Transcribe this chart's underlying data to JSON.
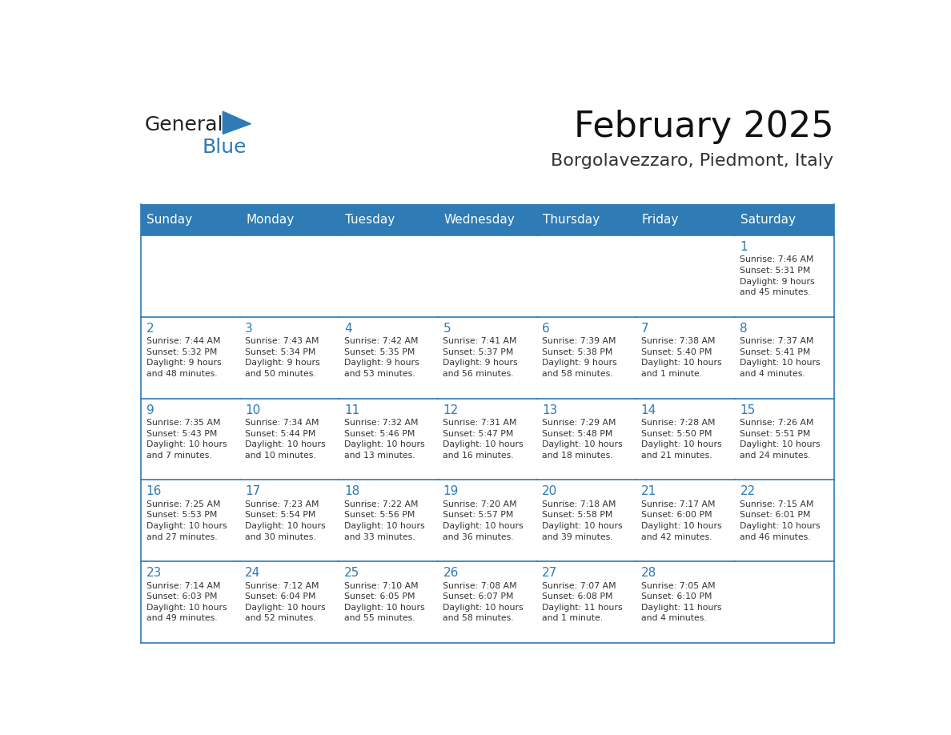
{
  "title": "February 2025",
  "subtitle": "Borgolavezzaro, Piedmont, Italy",
  "header_bg": "#2E7BB5",
  "header_text_color": "#FFFFFF",
  "cell_bg": "#FFFFFF",
  "text_color": "#333333",
  "day_number_color": "#2E7BB5",
  "border_color": "#2E7BB5",
  "days_of_week": [
    "Sunday",
    "Monday",
    "Tuesday",
    "Wednesday",
    "Thursday",
    "Friday",
    "Saturday"
  ],
  "logo_text1": "General",
  "logo_text2": "Blue",
  "logo_color1": "#222222",
  "logo_color2": "#2E7BB5",
  "calendar": [
    [
      {
        "day": "",
        "info": ""
      },
      {
        "day": "",
        "info": ""
      },
      {
        "day": "",
        "info": ""
      },
      {
        "day": "",
        "info": ""
      },
      {
        "day": "",
        "info": ""
      },
      {
        "day": "",
        "info": ""
      },
      {
        "day": "1",
        "info": "Sunrise: 7:46 AM\nSunset: 5:31 PM\nDaylight: 9 hours\nand 45 minutes."
      }
    ],
    [
      {
        "day": "2",
        "info": "Sunrise: 7:44 AM\nSunset: 5:32 PM\nDaylight: 9 hours\nand 48 minutes."
      },
      {
        "day": "3",
        "info": "Sunrise: 7:43 AM\nSunset: 5:34 PM\nDaylight: 9 hours\nand 50 minutes."
      },
      {
        "day": "4",
        "info": "Sunrise: 7:42 AM\nSunset: 5:35 PM\nDaylight: 9 hours\nand 53 minutes."
      },
      {
        "day": "5",
        "info": "Sunrise: 7:41 AM\nSunset: 5:37 PM\nDaylight: 9 hours\nand 56 minutes."
      },
      {
        "day": "6",
        "info": "Sunrise: 7:39 AM\nSunset: 5:38 PM\nDaylight: 9 hours\nand 58 minutes."
      },
      {
        "day": "7",
        "info": "Sunrise: 7:38 AM\nSunset: 5:40 PM\nDaylight: 10 hours\nand 1 minute."
      },
      {
        "day": "8",
        "info": "Sunrise: 7:37 AM\nSunset: 5:41 PM\nDaylight: 10 hours\nand 4 minutes."
      }
    ],
    [
      {
        "day": "9",
        "info": "Sunrise: 7:35 AM\nSunset: 5:43 PM\nDaylight: 10 hours\nand 7 minutes."
      },
      {
        "day": "10",
        "info": "Sunrise: 7:34 AM\nSunset: 5:44 PM\nDaylight: 10 hours\nand 10 minutes."
      },
      {
        "day": "11",
        "info": "Sunrise: 7:32 AM\nSunset: 5:46 PM\nDaylight: 10 hours\nand 13 minutes."
      },
      {
        "day": "12",
        "info": "Sunrise: 7:31 AM\nSunset: 5:47 PM\nDaylight: 10 hours\nand 16 minutes."
      },
      {
        "day": "13",
        "info": "Sunrise: 7:29 AM\nSunset: 5:48 PM\nDaylight: 10 hours\nand 18 minutes."
      },
      {
        "day": "14",
        "info": "Sunrise: 7:28 AM\nSunset: 5:50 PM\nDaylight: 10 hours\nand 21 minutes."
      },
      {
        "day": "15",
        "info": "Sunrise: 7:26 AM\nSunset: 5:51 PM\nDaylight: 10 hours\nand 24 minutes."
      }
    ],
    [
      {
        "day": "16",
        "info": "Sunrise: 7:25 AM\nSunset: 5:53 PM\nDaylight: 10 hours\nand 27 minutes."
      },
      {
        "day": "17",
        "info": "Sunrise: 7:23 AM\nSunset: 5:54 PM\nDaylight: 10 hours\nand 30 minutes."
      },
      {
        "day": "18",
        "info": "Sunrise: 7:22 AM\nSunset: 5:56 PM\nDaylight: 10 hours\nand 33 minutes."
      },
      {
        "day": "19",
        "info": "Sunrise: 7:20 AM\nSunset: 5:57 PM\nDaylight: 10 hours\nand 36 minutes."
      },
      {
        "day": "20",
        "info": "Sunrise: 7:18 AM\nSunset: 5:58 PM\nDaylight: 10 hours\nand 39 minutes."
      },
      {
        "day": "21",
        "info": "Sunrise: 7:17 AM\nSunset: 6:00 PM\nDaylight: 10 hours\nand 42 minutes."
      },
      {
        "day": "22",
        "info": "Sunrise: 7:15 AM\nSunset: 6:01 PM\nDaylight: 10 hours\nand 46 minutes."
      }
    ],
    [
      {
        "day": "23",
        "info": "Sunrise: 7:14 AM\nSunset: 6:03 PM\nDaylight: 10 hours\nand 49 minutes."
      },
      {
        "day": "24",
        "info": "Sunrise: 7:12 AM\nSunset: 6:04 PM\nDaylight: 10 hours\nand 52 minutes."
      },
      {
        "day": "25",
        "info": "Sunrise: 7:10 AM\nSunset: 6:05 PM\nDaylight: 10 hours\nand 55 minutes."
      },
      {
        "day": "26",
        "info": "Sunrise: 7:08 AM\nSunset: 6:07 PM\nDaylight: 10 hours\nand 58 minutes."
      },
      {
        "day": "27",
        "info": "Sunrise: 7:07 AM\nSunset: 6:08 PM\nDaylight: 11 hours\nand 1 minute."
      },
      {
        "day": "28",
        "info": "Sunrise: 7:05 AM\nSunset: 6:10 PM\nDaylight: 11 hours\nand 4 minutes."
      },
      {
        "day": "",
        "info": ""
      }
    ]
  ]
}
